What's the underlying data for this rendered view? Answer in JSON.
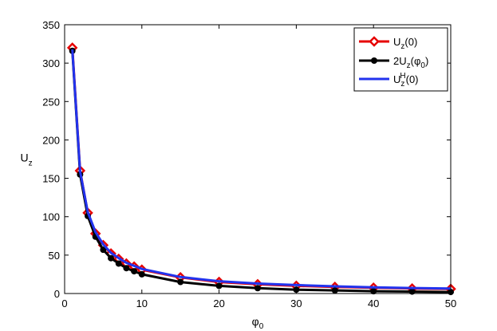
{
  "chart_data": {
    "type": "line",
    "xlabel": "φ",
    "xlabel_sub": "0",
    "ylabel": "U",
    "ylabel_sub": "z",
    "xlim": [
      0,
      50
    ],
    "ylim": [
      0,
      350
    ],
    "xticks": [
      0,
      10,
      20,
      30,
      40,
      50
    ],
    "yticks": [
      0,
      50,
      100,
      150,
      200,
      250,
      300,
      350
    ],
    "grid": false,
    "legend_position": "top-right",
    "series": [
      {
        "key": "uz0",
        "legend": [
          "U",
          "z",
          "(0)",
          ""
        ],
        "color": "#e60000",
        "marker": "diamond",
        "x": [
          1,
          2,
          3,
          4,
          5,
          6,
          7,
          8,
          9,
          10,
          15,
          20,
          25,
          30,
          35,
          40,
          45,
          50
        ],
        "y": [
          320,
          160,
          105,
          78,
          63,
          52,
          45,
          39,
          35,
          31,
          21,
          15,
          12,
          10,
          8.5,
          7.5,
          6.5,
          6
        ]
      },
      {
        "key": "twoUz",
        "legend": [
          "2U",
          "z",
          "(φ",
          "0",
          ")"
        ],
        "color": "#000000",
        "marker": "circle",
        "x": [
          1,
          2,
          3,
          4,
          5,
          6,
          7,
          8,
          9,
          10,
          15,
          20,
          25,
          30,
          35,
          40,
          45,
          50
        ],
        "y": [
          316,
          155,
          101,
          74,
          57,
          46,
          39,
          33,
          29,
          25,
          15,
          10,
          7,
          5,
          4,
          3,
          2.5,
          2
        ]
      },
      {
        "key": "uzH",
        "legend": [
          "U",
          "z",
          "H",
          "(0)"
        ],
        "color": "#2233ee",
        "marker": "none",
        "x": [
          1,
          2,
          3,
          4,
          5,
          6,
          7,
          8,
          9,
          10,
          15,
          20,
          25,
          30,
          35,
          40,
          45,
          50
        ],
        "y": [
          318,
          159,
          106,
          80,
          64,
          53,
          46,
          40,
          36,
          32,
          21.5,
          16,
          13,
          11,
          9.3,
          8,
          7.2,
          6.5
        ]
      }
    ]
  }
}
